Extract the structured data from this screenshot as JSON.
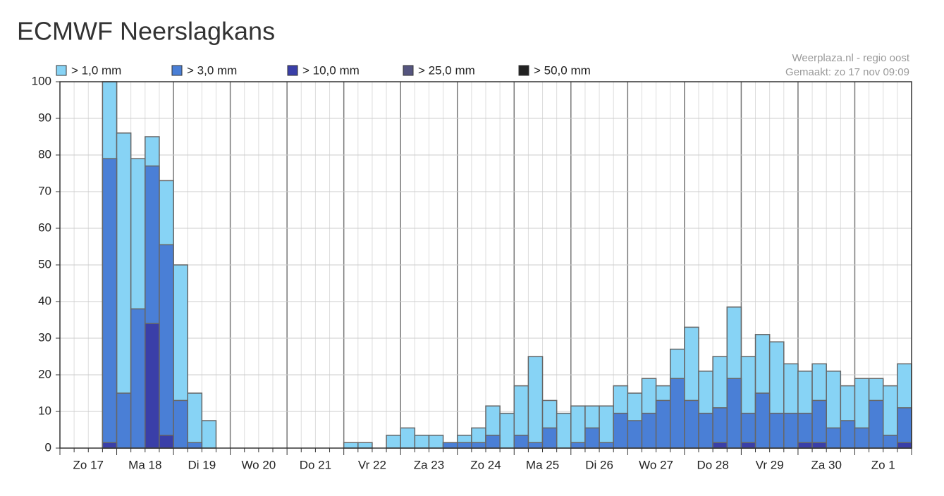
{
  "chart_data": {
    "type": "bar",
    "title": "ECMWF Neerslagkans",
    "source": "Weerplaza.nl - regio oost",
    "made": "Gemaakt: zo 17 nov 09:09",
    "days": [
      "Zo 17",
      "Ma 18",
      "Di 19",
      "Wo 20",
      "Do 21",
      "Vr 22",
      "Za 23",
      "Zo 24",
      "Ma 25",
      "Di 26",
      "Wo 27",
      "Do 28",
      "Vr 29",
      "Za 30",
      "Zo 1"
    ],
    "ylim": [
      0,
      100
    ],
    "yticks": [
      0,
      10,
      20,
      30,
      40,
      50,
      60,
      70,
      80,
      90,
      100
    ],
    "grid": true,
    "series": [
      {
        "name": "> 1,0 mm",
        "color": "#87d3f5",
        "values": [
          0,
          0,
          0,
          100,
          86,
          79,
          85,
          73,
          50,
          15,
          7.5,
          0,
          0,
          0,
          0,
          0,
          0,
          0,
          0,
          0,
          1.5,
          1.5,
          0,
          3.5,
          5.5,
          3.5,
          3.5,
          1.5,
          3.5,
          5.5,
          11.5,
          9.5,
          17,
          25,
          13,
          9.5,
          11.5,
          11.5,
          11.5,
          17,
          15,
          19,
          17,
          27,
          33,
          21,
          25,
          38.5,
          25,
          31,
          29,
          23,
          21,
          23,
          21,
          17,
          19,
          19,
          17,
          23
        ]
      },
      {
        "name": "> 3,0 mm",
        "color": "#4a7fd6",
        "values": [
          0,
          0,
          0,
          79,
          15,
          38,
          77,
          55.5,
          13,
          1.5,
          0,
          0,
          0,
          0,
          0,
          0,
          0,
          0,
          0,
          0,
          0,
          0,
          0,
          0,
          0,
          0,
          0,
          1.5,
          1.5,
          1.5,
          3.5,
          0,
          3.5,
          1.5,
          5.5,
          0,
          1.5,
          5.5,
          1.5,
          9.5,
          7.5,
          9.5,
          13,
          19,
          13,
          9.5,
          11,
          19,
          9.5,
          15,
          9.5,
          9.5,
          9.5,
          13,
          5.5,
          7.5,
          5.5,
          13,
          3.5,
          11
        ]
      },
      {
        "name": "> 10,0 mm",
        "color": "#3a3fa8",
        "values": [
          0,
          0,
          0,
          1.5,
          0,
          0,
          34,
          3.5,
          0,
          0,
          0,
          0,
          0,
          0,
          0,
          0,
          0,
          0,
          0,
          0,
          0,
          0,
          0,
          0,
          0,
          0,
          0,
          0,
          0,
          0,
          0,
          0,
          0,
          0,
          0,
          0,
          0,
          0,
          0,
          0,
          0,
          0,
          0,
          0,
          0,
          0,
          1.5,
          0,
          1.5,
          0,
          0,
          0,
          1.5,
          1.5,
          0,
          0,
          0,
          0,
          0,
          1.5
        ]
      },
      {
        "name": "> 25,0 mm",
        "color": "#55557f",
        "values": [
          0,
          0,
          0,
          0,
          0,
          0,
          0,
          0,
          0,
          0,
          0,
          0,
          0,
          0,
          0,
          0,
          0,
          0,
          0,
          0,
          0,
          0,
          0,
          0,
          0,
          0,
          0,
          0,
          0,
          0,
          0,
          0,
          0,
          0,
          0,
          0,
          0,
          0,
          0,
          0,
          0,
          0,
          0,
          0,
          0,
          0,
          0,
          0,
          0,
          0,
          0,
          0,
          0,
          0,
          0,
          0,
          0,
          0,
          0,
          0
        ]
      },
      {
        "name": "> 50,0 mm",
        "color": "#222222",
        "values": [
          0,
          0,
          0,
          0,
          0,
          0,
          0,
          0,
          0,
          0,
          0,
          0,
          0,
          0,
          0,
          0,
          0,
          0,
          0,
          0,
          0,
          0,
          0,
          0,
          0,
          0,
          0,
          0,
          0,
          0,
          0,
          0,
          0,
          0,
          0,
          0,
          0,
          0,
          0,
          0,
          0,
          0,
          0,
          0,
          0,
          0,
          0,
          0,
          0,
          0,
          0,
          0,
          0,
          0,
          0,
          0,
          0,
          0,
          0,
          0
        ]
      }
    ]
  }
}
